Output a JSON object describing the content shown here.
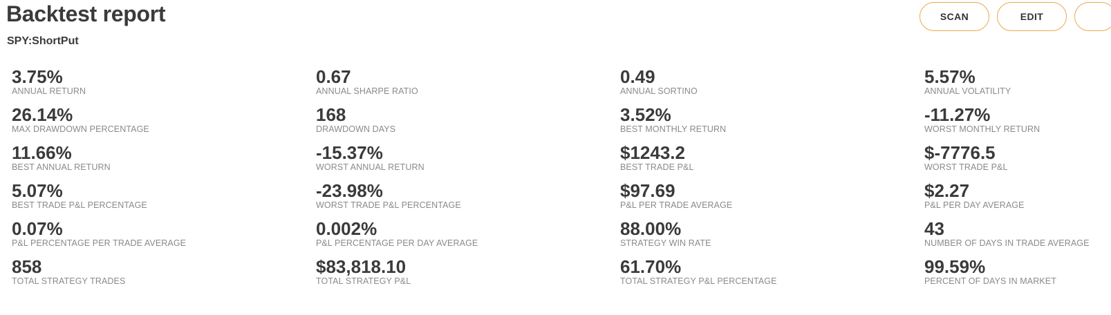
{
  "header": {
    "title": "Backtest report",
    "subtitle": "SPY:ShortPut"
  },
  "actions": {
    "scan_label": "SCAN",
    "edit_label": "EDIT",
    "more_label": ""
  },
  "colors": {
    "button_border": "#f0a64a",
    "value_text": "#3a3a3a",
    "label_text": "#8a8a8a"
  },
  "metrics": [
    {
      "value": "3.75%",
      "label": "ANNUAL RETURN"
    },
    {
      "value": "0.67",
      "label": "ANNUAL SHARPE RATIO"
    },
    {
      "value": "0.49",
      "label": "ANNUAL SORTINO"
    },
    {
      "value": "5.57%",
      "label": "ANNUAL VOLATILITY"
    },
    {
      "value": "26.14%",
      "label": "MAX DRAWDOWN PERCENTAGE"
    },
    {
      "value": "168",
      "label": "DRAWDOWN DAYS"
    },
    {
      "value": "3.52%",
      "label": "BEST MONTHLY RETURN"
    },
    {
      "value": "-11.27%",
      "label": "WORST MONTHLY RETURN"
    },
    {
      "value": "11.66%",
      "label": "BEST ANNUAL RETURN"
    },
    {
      "value": "-15.37%",
      "label": "WORST ANNUAL RETURN"
    },
    {
      "value": "$1243.2",
      "label": "BEST TRADE P&L"
    },
    {
      "value": "$-7776.5",
      "label": "WORST TRADE P&L"
    },
    {
      "value": "5.07%",
      "label": "BEST TRADE P&L PERCENTAGE"
    },
    {
      "value": "-23.98%",
      "label": "WORST TRADE P&L PERCENTAGE"
    },
    {
      "value": "$97.69",
      "label": "P&L PER TRADE AVERAGE"
    },
    {
      "value": "$2.27",
      "label": "P&L PER DAY AVERAGE"
    },
    {
      "value": "0.07%",
      "label": "P&L PERCENTAGE PER TRADE AVERAGE"
    },
    {
      "value": "0.002%",
      "label": "P&L PERCENTAGE PER DAY AVERAGE"
    },
    {
      "value": "88.00%",
      "label": "STRATEGY WIN RATE"
    },
    {
      "value": "43",
      "label": "NUMBER OF DAYS IN TRADE AVERAGE"
    },
    {
      "value": "858",
      "label": "TOTAL STRATEGY TRADES"
    },
    {
      "value": "$83,818.10",
      "label": "TOTAL STRATEGY P&L"
    },
    {
      "value": "61.70%",
      "label": "TOTAL STRATEGY P&L PERCENTAGE"
    },
    {
      "value": "99.59%",
      "label": "PERCENT OF DAYS IN MARKET"
    }
  ]
}
